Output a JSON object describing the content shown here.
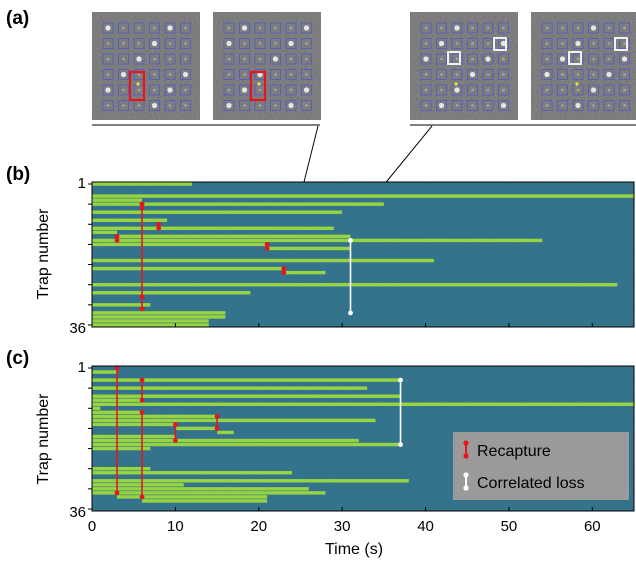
{
  "figure": {
    "panel_labels": {
      "a": "(a)",
      "b": "(b)",
      "c": "(c)"
    },
    "xlabel": "Time (s)",
    "ylabel": "Trap number",
    "y_top_label": "1",
    "y_bottom_label": "36",
    "x_ticks": [
      "0",
      "10",
      "20",
      "30",
      "40",
      "50",
      "60"
    ],
    "legend": {
      "recapture": "Recapture",
      "correlated_loss": "Correlated loss"
    },
    "colors": {
      "background": "#2c6e8a",
      "occupied": "#9fdc3c",
      "recapture": "#e8141d",
      "correlated_loss": "#ffffff",
      "legend_box": "#9a9a9a"
    }
  },
  "chart_data": [
    {
      "type": "heatmap",
      "panel": "b",
      "xlim": [
        0,
        65
      ],
      "ylim": [
        1,
        36
      ],
      "occupancy": [
        {
          "trap": 1,
          "start": 0,
          "end": 12
        },
        {
          "trap": 4,
          "start": 0,
          "end": 65
        },
        {
          "trap": 5,
          "start": 0,
          "end": 6
        },
        {
          "trap": 6,
          "start": 0,
          "end": 6
        },
        {
          "trap": 6,
          "start": 6,
          "end": 35
        },
        {
          "trap": 8,
          "start": 0,
          "end": 30
        },
        {
          "trap": 10,
          "start": 0,
          "end": 9
        },
        {
          "trap": 12,
          "start": 0,
          "end": 29
        },
        {
          "trap": 13,
          "start": 0,
          "end": 3
        },
        {
          "trap": 14,
          "start": 3,
          "end": 31
        },
        {
          "trap": 15,
          "start": 0,
          "end": 54
        },
        {
          "trap": 16,
          "start": 0,
          "end": 21
        },
        {
          "trap": 17,
          "start": 21,
          "end": 31
        },
        {
          "trap": 20,
          "start": 0,
          "end": 41
        },
        {
          "trap": 22,
          "start": 0,
          "end": 23
        },
        {
          "trap": 23,
          "start": 23,
          "end": 28
        },
        {
          "trap": 26,
          "start": 0,
          "end": 63
        },
        {
          "trap": 28,
          "start": 0,
          "end": 19
        },
        {
          "trap": 31,
          "start": 0,
          "end": 7
        },
        {
          "trap": 33,
          "start": 0,
          "end": 16
        },
        {
          "trap": 34,
          "start": 0,
          "end": 16
        },
        {
          "trap": 35,
          "start": 0,
          "end": 14
        },
        {
          "trap": 36,
          "start": 0,
          "end": 14
        }
      ],
      "recaptures": [
        {
          "t": 6,
          "trap_start": 6,
          "trap_end": 32
        },
        {
          "t": 6,
          "trap_start": 6,
          "trap_end": 7
        },
        {
          "t": 3,
          "trap_start": 14,
          "trap_end": 15
        },
        {
          "t": 8,
          "trap_start": 11,
          "trap_end": 12
        },
        {
          "t": 21,
          "trap_start": 16,
          "trap_end": 17
        },
        {
          "t": 23,
          "trap_start": 22,
          "trap_end": 23
        },
        {
          "t": 6,
          "trap_start": 29,
          "trap_end": 29
        }
      ],
      "correlated_losses": [
        {
          "t": 31,
          "trap_start": 15,
          "trap_end": 33
        }
      ]
    },
    {
      "type": "heatmap",
      "panel": "c",
      "xlim": [
        0,
        65
      ],
      "ylim": [
        1,
        36
      ],
      "occupancy": [
        {
          "trap": 2,
          "start": 0,
          "end": 3
        },
        {
          "trap": 4,
          "start": 0,
          "end": 37
        },
        {
          "trap": 6,
          "start": 0,
          "end": 33
        },
        {
          "trap": 8,
          "start": 0,
          "end": 37
        },
        {
          "trap": 9,
          "start": 0,
          "end": 6
        },
        {
          "trap": 10,
          "start": 0,
          "end": 65
        },
        {
          "trap": 11,
          "start": 0,
          "end": 1
        },
        {
          "trap": 12,
          "start": 0,
          "end": 6
        },
        {
          "trap": 13,
          "start": 0,
          "end": 15
        },
        {
          "trap": 14,
          "start": 0,
          "end": 34
        },
        {
          "trap": 15,
          "start": 0,
          "end": 10
        },
        {
          "trap": 16,
          "start": 10,
          "end": 15
        },
        {
          "trap": 17,
          "start": 15,
          "end": 17
        },
        {
          "trap": 18,
          "start": 0,
          "end": 10
        },
        {
          "trap": 19,
          "start": 0,
          "end": 32
        },
        {
          "trap": 20,
          "start": 0,
          "end": 37
        },
        {
          "trap": 21,
          "start": 0,
          "end": 7
        },
        {
          "trap": 26,
          "start": 0,
          "end": 7
        },
        {
          "trap": 27,
          "start": 0,
          "end": 24
        },
        {
          "trap": 29,
          "start": 0,
          "end": 38
        },
        {
          "trap": 30,
          "start": 0,
          "end": 11
        },
        {
          "trap": 31,
          "start": 0,
          "end": 26
        },
        {
          "trap": 32,
          "start": 0,
          "end": 28
        },
        {
          "trap": 33,
          "start": 3,
          "end": 21
        },
        {
          "trap": 34,
          "start": 6,
          "end": 21
        }
      ],
      "recaptures": [
        {
          "t": 3,
          "trap_start": 1,
          "trap_end": 32
        },
        {
          "t": 6,
          "trap_start": 4,
          "trap_end": 9
        },
        {
          "t": 6,
          "trap_start": 12,
          "trap_end": 33
        },
        {
          "t": 10,
          "trap_start": 15,
          "trap_end": 19
        },
        {
          "t": 15,
          "trap_start": 13,
          "trap_end": 16
        }
      ],
      "correlated_losses": [
        {
          "t": 37,
          "trap_start": 4,
          "trap_end": 20
        }
      ]
    }
  ]
}
